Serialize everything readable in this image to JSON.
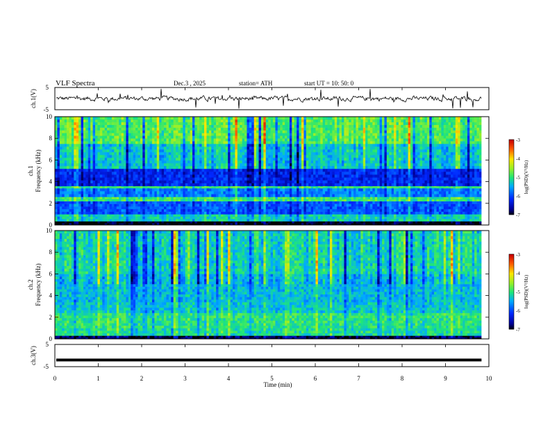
{
  "header": {
    "title": "VLF  Spectra",
    "date": "Dec.3  , 2025",
    "station": "station= ATH",
    "start": "start  UT  =    10: 50: 0"
  },
  "colorbar_label": "log(PSD)(V²/Hz)",
  "colors": {
    "spectro_low": "#0000cc",
    "spectro_mid": "#1ec8ff",
    "spectro_green": "#28e05a",
    "spectro_high": "#e01010",
    "axis": "#000000"
  },
  "chart_data": [
    {
      "type": "line",
      "name": "ch1-waveform",
      "ylabel": "ch.1(V)",
      "ylim": [
        -5,
        5
      ],
      "yticks": [
        "5",
        "-5"
      ],
      "xlim": [
        0,
        10
      ],
      "xticks": [
        "0",
        "1",
        "2",
        "3",
        "4",
        "5",
        "6",
        "7",
        "8",
        "9",
        "10"
      ],
      "data_end_min": 9.83,
      "description_level": 0
    },
    {
      "type": "heatmap",
      "name": "ch1-spectrogram",
      "ylabel": "Frequency (kHz)",
      "channel_label": "ch.1",
      "ylim": [
        0,
        10
      ],
      "yticks": [
        "0",
        "2",
        "4",
        "6",
        "8",
        "10"
      ],
      "xlim": [
        0,
        10
      ],
      "colorbar": {
        "range": [
          -7,
          -3
        ],
        "ticks": [
          "-3",
          "-4",
          "-5",
          "-6",
          "-7"
        ]
      },
      "bands_khz": [
        {
          "from": 0.0,
          "to": 0.35,
          "level": -7
        },
        {
          "from": 0.35,
          "to": 1.0,
          "level": -5.2
        },
        {
          "from": 1.0,
          "to": 2.2,
          "level": -5.9
        },
        {
          "from": 2.2,
          "to": 2.6,
          "level": -4.9
        },
        {
          "from": 2.6,
          "to": 3.4,
          "level": -5.7
        },
        {
          "from": 3.4,
          "to": 3.6,
          "level": -4.9
        },
        {
          "from": 3.6,
          "to": 5.2,
          "level": -6.2
        },
        {
          "from": 5.2,
          "to": 7.5,
          "level": -5.3
        },
        {
          "from": 7.5,
          "to": 10.0,
          "level": -4.8
        }
      ]
    },
    {
      "type": "heatmap",
      "name": "ch2-spectrogram",
      "ylabel": "Frequency (kHz)",
      "channel_label": "ch.2",
      "ylim": [
        0,
        10
      ],
      "yticks": [
        "0",
        "2",
        "4",
        "6",
        "8",
        "10"
      ],
      "xlim": [
        0,
        10
      ],
      "colorbar": {
        "range": [
          -7,
          -3
        ],
        "ticks": [
          "-3",
          "-4",
          "-5",
          "-6",
          "-7"
        ]
      },
      "bands_khz": [
        {
          "from": 0.0,
          "to": 0.3,
          "level": -6.8
        },
        {
          "from": 0.3,
          "to": 1.0,
          "level": -5.1
        },
        {
          "from": 1.0,
          "to": 2.4,
          "level": -5.0
        },
        {
          "from": 2.4,
          "to": 3.4,
          "level": -5.3
        },
        {
          "from": 3.4,
          "to": 4.6,
          "level": -5.4
        },
        {
          "from": 4.6,
          "to": 6.0,
          "level": -5.4
        },
        {
          "from": 6.0,
          "to": 10.0,
          "level": -5.2
        }
      ]
    },
    {
      "type": "line",
      "name": "ch3-waveform",
      "ylabel": "ch.3(V)",
      "xlabel": "Time  (min)",
      "ylim": [
        -5,
        5
      ],
      "yticks": [
        "5",
        "-5"
      ],
      "xlim": [
        0,
        10
      ],
      "xticks": [
        "0",
        "1",
        "2",
        "3",
        "4",
        "5",
        "6",
        "7",
        "8",
        "9",
        "10"
      ],
      "data_end_min": 9.83,
      "level": -2
    }
  ]
}
